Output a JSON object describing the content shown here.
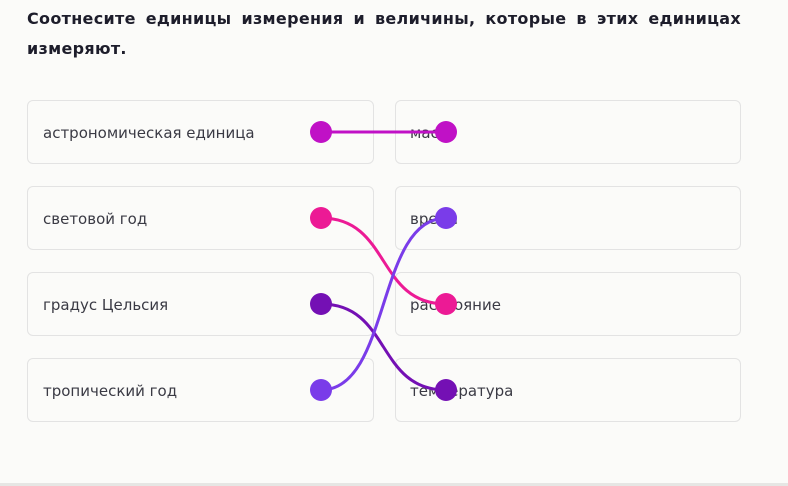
{
  "question": "Соотнесите единицы измерения и величины, которые в этих единицах измеряют.",
  "left_items": [
    "астрономическая единица",
    "световой год",
    "градус Цельсия",
    "тропический год"
  ],
  "right_items": [
    "масса",
    "время",
    "расстояние",
    "температура"
  ],
  "connections": [
    {
      "left": 0,
      "right": 0,
      "color": "#c011c6"
    },
    {
      "left": 1,
      "right": 2,
      "color": "#ec1a95"
    },
    {
      "left": 2,
      "right": 3,
      "color": "#7410b4"
    },
    {
      "left": 3,
      "right": 1,
      "color": "#7a3ce9"
    }
  ]
}
